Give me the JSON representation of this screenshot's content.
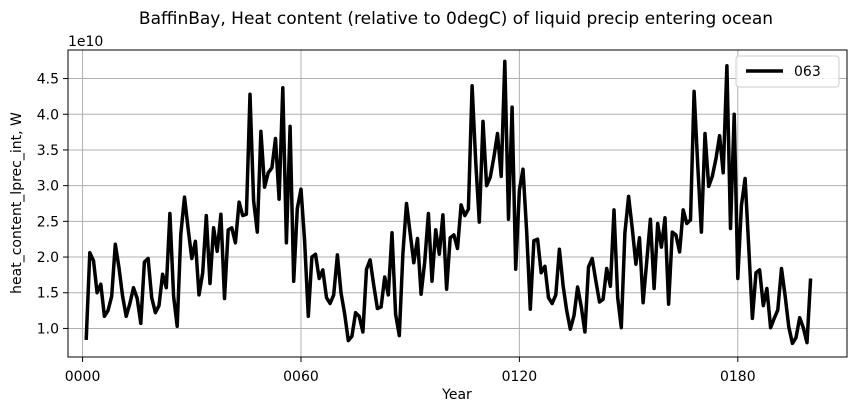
{
  "chart_data": {
    "type": "line",
    "title": "BaffinBay, Heat content (relative to 0degC) of liquid precip entering ocean",
    "xlabel": "Year",
    "ylabel": "heat_content_lprec_int, W",
    "y_offset_label": "1e10",
    "xlim": [
      -4,
      210
    ],
    "ylim": [
      0.6,
      4.9
    ],
    "x_ticks": [
      0,
      60,
      120,
      180
    ],
    "x_tick_labels": [
      "0000",
      "0060",
      "0120",
      "0180"
    ],
    "y_ticks": [
      1.0,
      1.5,
      2.0,
      2.5,
      3.0,
      3.5,
      4.0,
      4.5
    ],
    "y_tick_labels": [
      "1.0",
      "1.5",
      "2.0",
      "2.5",
      "3.0",
      "3.5",
      "4.0",
      "4.5"
    ],
    "grid": true,
    "legend_position": "top-right",
    "series": [
      {
        "name": "063",
        "color": "#000000",
        "x": [
          1,
          2,
          3,
          4,
          5,
          6,
          7,
          8,
          9,
          10,
          11,
          12,
          13,
          14,
          15,
          16,
          17,
          18,
          19,
          20,
          21,
          22,
          23,
          24,
          25,
          26,
          27,
          28,
          29,
          30,
          31,
          32,
          33,
          34,
          35,
          36,
          37,
          38,
          39,
          40,
          41,
          42,
          43,
          44,
          45,
          46,
          47,
          48,
          49,
          50,
          51,
          52,
          53,
          54,
          55,
          56,
          57,
          58,
          59,
          60,
          61,
          62,
          63,
          64,
          65,
          66,
          67,
          68,
          69,
          70,
          71,
          72,
          73,
          74,
          75,
          76,
          77,
          78,
          79,
          80,
          81,
          82,
          83,
          84,
          85,
          86,
          87,
          88,
          89,
          90,
          91,
          92,
          93,
          94,
          95,
          96,
          97,
          98,
          99,
          100,
          101,
          102,
          103,
          104,
          105,
          106,
          107,
          108,
          109,
          110,
          111,
          112,
          113,
          114,
          115,
          116,
          117,
          118,
          119,
          120,
          121,
          122,
          123,
          124,
          125,
          126,
          127,
          128,
          129,
          130,
          131,
          132,
          133,
          134,
          135,
          136,
          137,
          138,
          139,
          140,
          141,
          142,
          143,
          144,
          145,
          146,
          147,
          148,
          149,
          150,
          151,
          152,
          153,
          154,
          155,
          156,
          157,
          158,
          159,
          160,
          161,
          162,
          163,
          164,
          165,
          166,
          167,
          168,
          169,
          170,
          171,
          172,
          173,
          174,
          175,
          176,
          177,
          178,
          179,
          180,
          181,
          182,
          183,
          184,
          185,
          186,
          187,
          188,
          189,
          190,
          191,
          192,
          193,
          194,
          195,
          196,
          197,
          198,
          199,
          200
        ],
        "values": [
          0.84,
          2.06,
          1.95,
          1.5,
          1.62,
          1.17,
          1.25,
          1.45,
          2.18,
          1.85,
          1.45,
          1.17,
          1.35,
          1.57,
          1.42,
          1.07,
          1.93,
          1.98,
          1.43,
          1.22,
          1.32,
          1.76,
          1.57,
          2.61,
          1.45,
          1.03,
          2.32,
          2.84,
          2.4,
          1.98,
          2.22,
          1.47,
          1.78,
          2.58,
          1.63,
          2.41,
          2.08,
          2.6,
          1.42,
          2.38,
          2.41,
          2.2,
          2.77,
          2.58,
          2.6,
          4.28,
          2.79,
          2.35,
          3.76,
          2.98,
          3.18,
          3.25,
          3.66,
          2.81,
          4.37,
          2.2,
          3.83,
          1.66,
          2.68,
          2.95,
          2.23,
          1.17,
          2.0,
          2.04,
          1.7,
          1.82,
          1.43,
          1.35,
          1.47,
          2.03,
          1.5,
          1.2,
          0.83,
          0.89,
          1.22,
          1.17,
          0.95,
          1.83,
          1.96,
          1.6,
          1.28,
          1.3,
          1.72,
          1.47,
          2.34,
          1.2,
          0.9,
          2.05,
          2.75,
          2.33,
          1.92,
          2.26,
          1.48,
          1.93,
          2.61,
          1.66,
          2.38,
          2.04,
          2.59,
          1.55,
          2.27,
          2.31,
          2.12,
          2.73,
          2.58,
          2.67,
          4.4,
          3.34,
          2.49,
          3.9,
          3.0,
          3.12,
          3.4,
          3.73,
          3.13,
          4.74,
          2.53,
          4.1,
          1.83,
          2.94,
          3.23,
          2.35,
          1.27,
          2.23,
          2.25,
          1.78,
          1.87,
          1.43,
          1.35,
          1.47,
          2.11,
          1.6,
          1.25,
          0.99,
          1.18,
          1.58,
          1.3,
          0.95,
          1.86,
          1.98,
          1.67,
          1.37,
          1.41,
          1.84,
          1.59,
          2.66,
          1.43,
          1.01,
          2.34,
          2.85,
          2.41,
          1.9,
          2.27,
          1.36,
          1.95,
          2.53,
          1.56,
          2.47,
          2.14,
          2.55,
          1.34,
          2.35,
          2.31,
          2.07,
          2.66,
          2.47,
          2.52,
          4.32,
          3.27,
          2.35,
          3.73,
          2.99,
          3.13,
          3.38,
          3.7,
          3.18,
          4.68,
          2.4,
          4.0,
          1.7,
          2.72,
          3.1,
          2.15,
          1.14,
          1.78,
          1.82,
          1.32,
          1.56,
          1.01,
          1.14,
          1.26,
          1.84,
          1.46,
          1.02,
          0.79,
          0.87,
          1.15,
          1.01,
          0.8,
          1.7
        ]
      }
    ]
  }
}
